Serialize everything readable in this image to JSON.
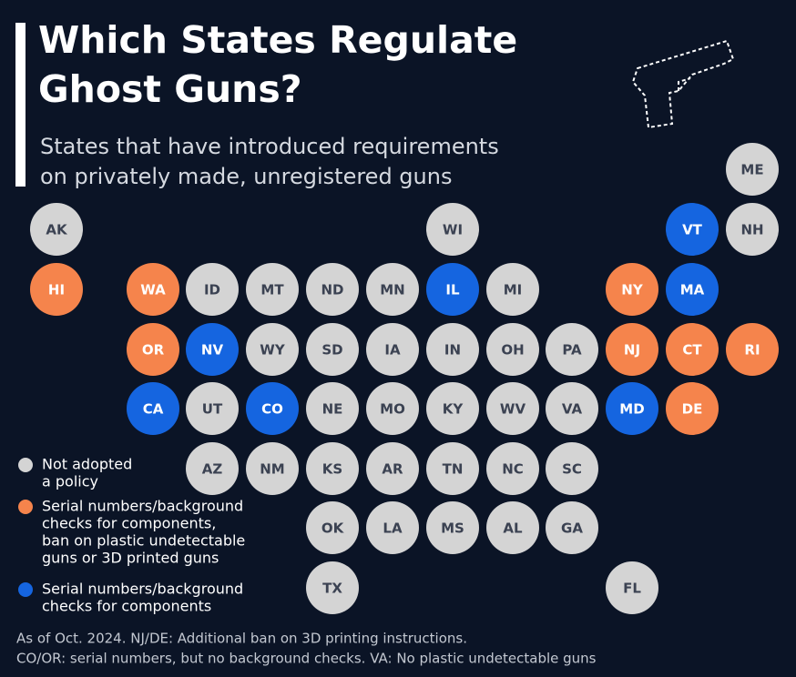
{
  "header": {
    "title": [
      "Which States Regulate",
      "Ghost Guns?"
    ],
    "subtitle": [
      "States that have introduced requirements",
      "on privately made, unregistered guns"
    ]
  },
  "legend": [
    {
      "color": "#d4d4d4",
      "lines": [
        "Not adopted",
        "a policy"
      ]
    },
    {
      "color": "#f5844c",
      "lines": [
        "Serial numbers/background",
        "checks for components,",
        "ban on plastic undetectable",
        "guns or 3D printed guns"
      ]
    },
    {
      "color": "#1565e0",
      "lines": [
        "Serial numbers/background",
        "checks for components"
      ]
    }
  ],
  "states": [
    {
      "label": "ME",
      "policy": 0
    },
    {
      "label": "AK",
      "policy": 0
    },
    {
      "label": "WI",
      "policy": 0
    },
    {
      "label": "VT",
      "policy": 2
    },
    {
      "label": "NH",
      "policy": 0
    },
    {
      "label": "HI",
      "policy": 1
    },
    {
      "label": "WA",
      "policy": 1
    },
    {
      "label": "ID",
      "policy": 0
    },
    {
      "label": "MT",
      "policy": 0
    },
    {
      "label": "ND",
      "policy": 0
    },
    {
      "label": "MN",
      "policy": 0
    },
    {
      "label": "IL",
      "policy": 2
    },
    {
      "label": "MI",
      "policy": 0
    },
    {
      "label": "NY",
      "policy": 1
    },
    {
      "label": "MA",
      "policy": 2
    },
    {
      "label": "OR",
      "policy": 1
    },
    {
      "label": "NV",
      "policy": 2
    },
    {
      "label": "WY",
      "policy": 0
    },
    {
      "label": "SD",
      "policy": 0
    },
    {
      "label": "IA",
      "policy": 0
    },
    {
      "label": "IN",
      "policy": 0
    },
    {
      "label": "OH",
      "policy": 0
    },
    {
      "label": "PA",
      "policy": 0
    },
    {
      "label": "NJ",
      "policy": 1
    },
    {
      "label": "CT",
      "policy": 1
    },
    {
      "label": "RI",
      "policy": 1
    },
    {
      "label": "CA",
      "policy": 2
    },
    {
      "label": "UT",
      "policy": 0
    },
    {
      "label": "CO",
      "policy": 2
    },
    {
      "label": "NE",
      "policy": 0
    },
    {
      "label": "MO",
      "policy": 0
    },
    {
      "label": "KY",
      "policy": 0
    },
    {
      "label": "WV",
      "policy": 0
    },
    {
      "label": "VA",
      "policy": 0
    },
    {
      "label": "MD",
      "policy": 2
    },
    {
      "label": "DE",
      "policy": 1
    },
    {
      "label": "AZ",
      "policy": 0
    },
    {
      "label": "NM",
      "policy": 0
    },
    {
      "label": "KS",
      "policy": 0
    },
    {
      "label": "AR",
      "policy": 0
    },
    {
      "label": "TN",
      "policy": 0
    },
    {
      "label": "NC",
      "policy": 0
    },
    {
      "label": "SC",
      "policy": 0
    },
    {
      "label": "OK",
      "policy": 0
    },
    {
      "label": "LA",
      "policy": 0
    },
    {
      "label": "MS",
      "policy": 0
    },
    {
      "label": "AL",
      "policy": 0
    },
    {
      "label": "GA",
      "policy": 0
    },
    {
      "label": "TX",
      "policy": 0
    },
    {
      "label": "FL",
      "policy": 0
    }
  ],
  "footnote": [
    "As of Oct. 2024. NJ/DE: Additional ban on 3D printing instructions.",
    "CO/OR: serial numbers, but no background checks. VA: No plastic undetectable guns"
  ]
}
